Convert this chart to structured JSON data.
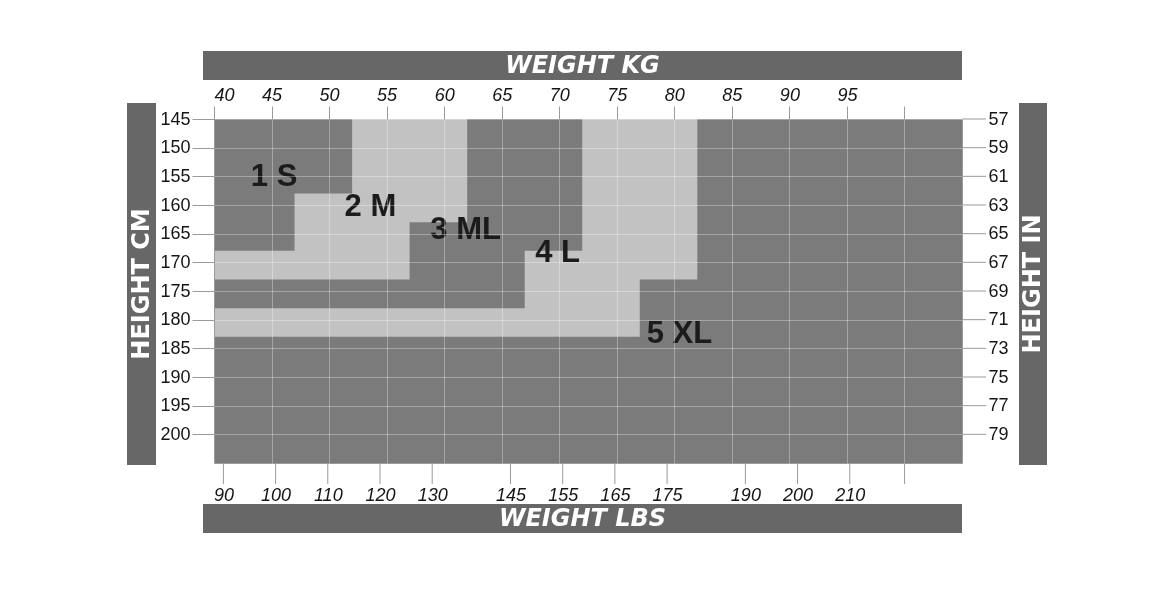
{
  "chart_data": {
    "type": "area",
    "xlabel": "WEIGHT LBS",
    "x2label": "WEIGHT KG",
    "ylabel": "HEIGHT CM",
    "y2label": "HEIGHT IN",
    "xlim": [
      88.2,
      231.5
    ],
    "xticks": [
      90,
      100,
      110,
      120,
      130,
      145,
      155,
      165,
      175,
      190,
      200,
      210,
      {
        "value": 220.5,
        "label": null
      }
    ],
    "x2lim": [
      40,
      105
    ],
    "x2ticks": [
      40,
      45,
      50,
      55,
      60,
      65,
      70,
      75,
      80,
      85,
      90,
      95,
      {
        "value": 100,
        "label": null
      }
    ],
    "ylim": [
      205,
      145
    ],
    "yticks": [
      145,
      150,
      155,
      160,
      165,
      170,
      175,
      180,
      185,
      190,
      195,
      200
    ],
    "y2lim": [
      81,
      57
    ],
    "y2ticks": [
      57,
      59,
      61,
      63,
      65,
      67,
      69,
      71,
      73,
      75,
      77,
      79
    ],
    "grid": true,
    "series": [
      {
        "name": "1 S",
        "color": "#7b7b7c",
        "axis": "x2",
        "x": [
          40,
          47,
          47,
          52
        ],
        "values": [
          168,
          168,
          158,
          158
        ]
      },
      {
        "name": "2 M",
        "color": "#c1c2c1",
        "axis": "x2",
        "x": [
          40,
          57,
          57,
          62
        ],
        "values": [
          173,
          173,
          163,
          163
        ]
      },
      {
        "name": "3 ML",
        "color": "#7b7b7c",
        "axis": "x2",
        "x": [
          40,
          67,
          67,
          72
        ],
        "values": [
          178,
          178,
          168,
          168
        ]
      },
      {
        "name": "4 L",
        "color": "#c1c2c1",
        "axis": "x2",
        "x": [
          40,
          77,
          77,
          82
        ],
        "values": [
          183,
          183,
          173,
          173
        ]
      }
    ],
    "bands": [
      {
        "axis": "y",
        "from": 145,
        "to": 205,
        "label": "5 XL",
        "color": "#7b7b7c"
      }
    ]
  }
}
